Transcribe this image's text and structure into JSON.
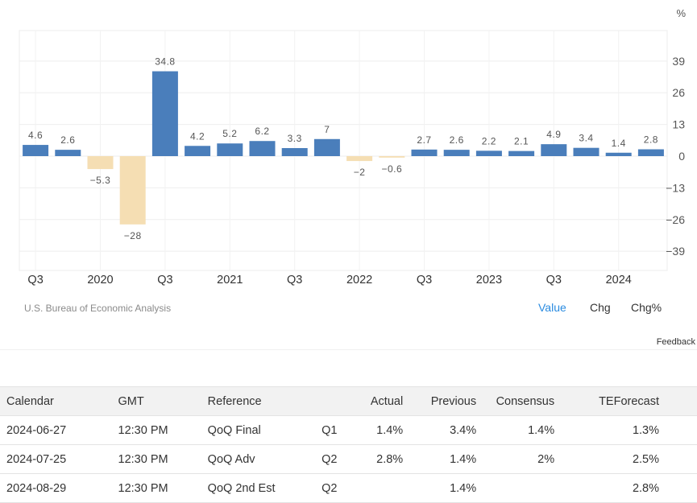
{
  "chart_data": {
    "type": "bar",
    "unit_label": "%",
    "values": [
      4.6,
      2.6,
      -5.3,
      -28,
      34.8,
      4.2,
      5.2,
      6.2,
      3.3,
      7,
      -2,
      -0.6,
      2.7,
      2.6,
      2.2,
      2.1,
      4.9,
      3.4,
      1.4,
      2.8
    ],
    "value_labels": [
      "4.6",
      "2.6",
      "-5.3",
      "-28",
      "34.8",
      "4.2",
      "5.2",
      "6.2",
      "3.3",
      "7",
      "-2",
      "-0.6",
      "2.7",
      "2.6",
      "2.2",
      "2.1",
      "4.9",
      "3.4",
      "1.4",
      "2.8"
    ],
    "x_tick_labels": [
      {
        "index": 0,
        "label": "Q3"
      },
      {
        "index": 2,
        "label": "2020"
      },
      {
        "index": 4,
        "label": "Q3"
      },
      {
        "index": 6,
        "label": "2021"
      },
      {
        "index": 8,
        "label": "Q3"
      },
      {
        "index": 10,
        "label": "2022"
      },
      {
        "index": 12,
        "label": "Q3"
      },
      {
        "index": 14,
        "label": "2023"
      },
      {
        "index": 16,
        "label": "Q3"
      },
      {
        "index": 18,
        "label": "2024"
      }
    ],
    "y_ticks": [
      39,
      26,
      13,
      0,
      -13,
      -26,
      -39
    ],
    "ylim": [
      -48,
      52
    ],
    "grid": true,
    "positive_color": "#4a7ebb",
    "negative_color": "#f5deb3",
    "source": "U.S. Bureau of Economic Analysis"
  },
  "view_options": {
    "value": "Value",
    "chg": "Chg",
    "chg_pct": "Chg%"
  },
  "feedback_label": "Feedback",
  "calendar": {
    "headers": {
      "calendar": "Calendar",
      "gmt": "GMT",
      "reference": "Reference",
      "period": "",
      "actual": "Actual",
      "previous": "Previous",
      "consensus": "Consensus",
      "teforecast": "TEForecast"
    },
    "rows": [
      {
        "calendar": "2024-06-27",
        "gmt": "12:30 PM",
        "reference": "QoQ Final",
        "period": "Q1",
        "actual": "1.4%",
        "previous": "3.4%",
        "consensus": "1.4%",
        "teforecast": "1.3%"
      },
      {
        "calendar": "2024-07-25",
        "gmt": "12:30 PM",
        "reference": "QoQ Adv",
        "period": "Q2",
        "actual": "2.8%",
        "previous": "1.4%",
        "consensus": "2%",
        "teforecast": "2.5%"
      },
      {
        "calendar": "2024-08-29",
        "gmt": "12:30 PM",
        "reference": "QoQ 2nd Est",
        "period": "Q2",
        "actual": "",
        "previous": "1.4%",
        "consensus": "",
        "teforecast": "2.8%"
      }
    ]
  }
}
